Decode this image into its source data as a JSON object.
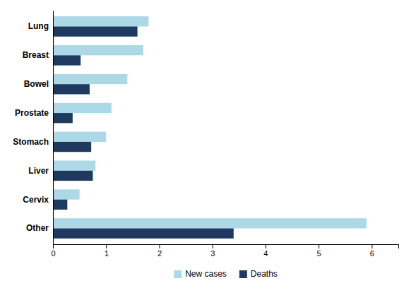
{
  "chart_data": {
    "type": "bar",
    "orientation": "horizontal",
    "categories": [
      "Other",
      "Cervix",
      "Liver",
      "Stomach",
      "Prostate",
      "Bowel",
      "Breast",
      "Lung"
    ],
    "series": [
      {
        "name": "New cases",
        "color": "#add8e6",
        "values": [
          5.9,
          0.5,
          0.8,
          1.0,
          1.1,
          1.4,
          1.7,
          1.8
        ]
      },
      {
        "name": "Deaths",
        "color": "#1e3a5f",
        "values": [
          3.4,
          0.27,
          0.75,
          0.72,
          0.37,
          0.69,
          0.52,
          1.59
        ]
      }
    ],
    "xlim": [
      0,
      6.5
    ],
    "xticks": [
      0,
      1,
      2,
      3,
      4,
      5,
      6
    ],
    "grid": false,
    "legend": "bottom"
  }
}
